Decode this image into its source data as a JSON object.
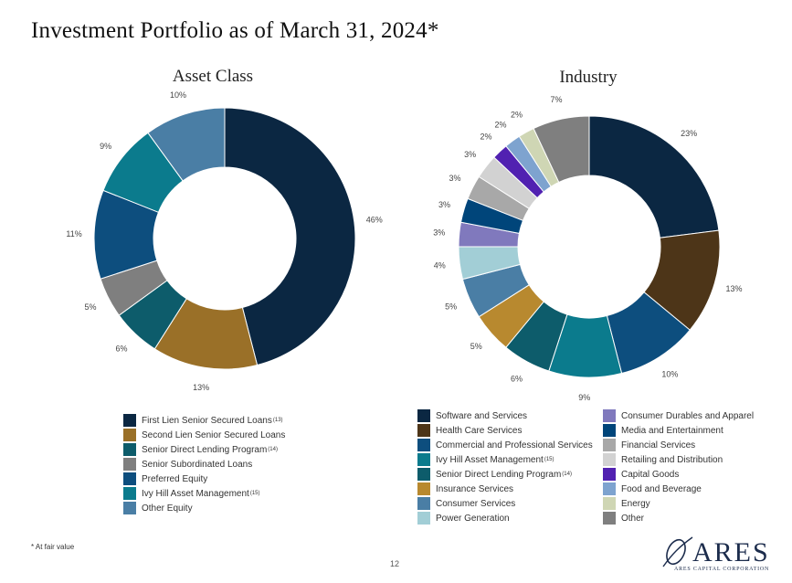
{
  "page": {
    "title": "Investment Portfolio as of March 31, 2024*",
    "footnote": "* At fair value",
    "page_number": "12",
    "logo": {
      "word": "ARES",
      "sub": "ARES CAPITAL CORPORATION"
    }
  },
  "chart_data": [
    {
      "type": "pie",
      "title": "Asset Class",
      "slices": [
        {
          "label": "First Lien Senior Secured Loans",
          "sup": "(13)",
          "value": 46,
          "value_label": "46%",
          "color": "#0b2742"
        },
        {
          "label": "Second Lien Senior Secured Loans",
          "sup": "",
          "value": 13,
          "value_label": "13%",
          "color": "#9a7028"
        },
        {
          "label": "Senior Direct Lending Program",
          "sup": "(14)",
          "value": 6,
          "value_label": "6%",
          "color": "#0d5c6b"
        },
        {
          "label": "Senior Subordinated Loans",
          "sup": "",
          "value": 5,
          "value_label": "5%",
          "color": "#7f7f7f"
        },
        {
          "label": "Preferred Equity",
          "sup": "",
          "value": 11,
          "value_label": "11%",
          "color": "#0d4e7e"
        },
        {
          "label": "Ivy Hill Asset Management",
          "sup": "(15)",
          "value": 9,
          "value_label": "9%",
          "color": "#0b7b8d"
        },
        {
          "label": "Other Equity",
          "sup": "",
          "value": 10,
          "value_label": "10%",
          "color": "#4a7ea5"
        }
      ]
    },
    {
      "type": "pie",
      "title": "Industry",
      "slices": [
        {
          "label": "Software and Services",
          "sup": "",
          "value": 23,
          "value_label": "23%",
          "color": "#0b2742"
        },
        {
          "label": "Health Care Services",
          "sup": "",
          "value": 13,
          "value_label": "13%",
          "color": "#4d3518"
        },
        {
          "label": "Commercial and Professional Services",
          "sup": "",
          "value": 10,
          "value_label": "10%",
          "color": "#0d4e7e"
        },
        {
          "label": "Ivy Hill Asset Management",
          "sup": "(15)",
          "value": 9,
          "value_label": "9%",
          "color": "#0b7b8d"
        },
        {
          "label": "Senior Direct Lending Program",
          "sup": "(14)",
          "value": 6,
          "value_label": "6%",
          "color": "#0d5c6b"
        },
        {
          "label": "Insurance Services",
          "sup": "",
          "value": 5,
          "value_label": "5%",
          "color": "#b8892f"
        },
        {
          "label": "Consumer Services",
          "sup": "",
          "value": 5,
          "value_label": "5%",
          "color": "#4a7ea5"
        },
        {
          "label": "Power Generation",
          "sup": "",
          "value": 4,
          "value_label": "4%",
          "color": "#a2ced6"
        },
        {
          "label": "Consumer Durables and Apparel",
          "sup": "",
          "value": 3,
          "value_label": "3%",
          "color": "#8079bd"
        },
        {
          "label": "Media and Entertainment",
          "sup": "",
          "value": 3,
          "value_label": "3%",
          "color": "#00457a"
        },
        {
          "label": "Financial Services",
          "sup": "",
          "value": 3,
          "value_label": "3%",
          "color": "#a8a8a8"
        },
        {
          "label": "Retailing and Distribution",
          "sup": "",
          "value": 3,
          "value_label": "3%",
          "color": "#d2d2d2"
        },
        {
          "label": "Capital Goods",
          "sup": "",
          "value": 2,
          "value_label": "2%",
          "color": "#5121b1"
        },
        {
          "label": "Food and Beverage",
          "sup": "",
          "value": 2,
          "value_label": "2%",
          "color": "#7ea3cf"
        },
        {
          "label": "Energy",
          "sup": "",
          "value": 2,
          "value_label": "2%",
          "color": "#cfd6b4"
        },
        {
          "label": "Other",
          "sup": "",
          "value": 7,
          "value_label": "7%",
          "color": "#7f7f7f"
        }
      ]
    }
  ]
}
